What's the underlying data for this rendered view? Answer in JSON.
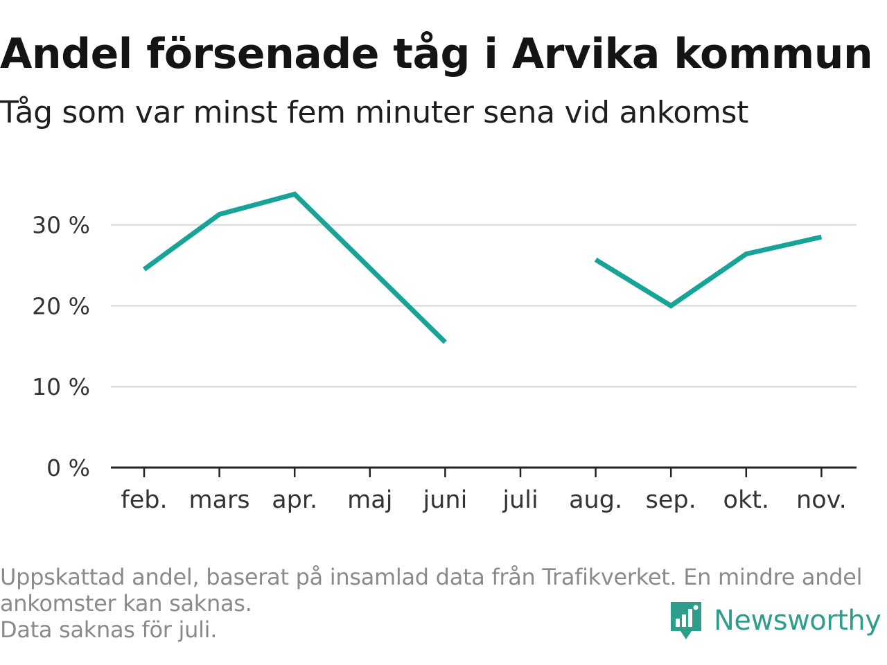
{
  "header": {
    "title": "Andel försenade tåg i Arvika kommun",
    "subtitle": "Tåg som var minst fem minuter sena vid ankomst"
  },
  "footnote": {
    "lines": [
      "Uppskattad andel, baserat på insamlad data från Trafikverket. En mindre andel",
      "ankomster kan saknas.",
      "Data saknas för juli."
    ]
  },
  "logo": {
    "text": "Newsworthy",
    "icon": "bar-chart-bubble-icon",
    "color": "#2f9d8c"
  },
  "chart_data": {
    "type": "line",
    "title": "Andel försenade tåg i Arvika kommun",
    "subtitle": "Tåg som var minst fem minuter sena vid ankomst",
    "categories": [
      "feb.",
      "mars",
      "apr.",
      "maj",
      "juni",
      "juli",
      "aug.",
      "sep.",
      "okt.",
      "nov."
    ],
    "series": [
      {
        "values": [
          24.5,
          31.3,
          33.8,
          null,
          15.5,
          null,
          25.7,
          20.0,
          26.4,
          28.5
        ],
        "color": "#17a398"
      }
    ],
    "ylim": [
      0,
      35
    ],
    "yticks": [
      0,
      10,
      20,
      30
    ],
    "ytick_labels": [
      "0 %",
      "10 %",
      "20 %",
      "30 %"
    ],
    "xlabel": "",
    "ylabel": "",
    "grid": true,
    "legend": "none",
    "colors": {
      "line": "#17a398",
      "grid": "#dddddd",
      "axis": "#222222"
    }
  }
}
